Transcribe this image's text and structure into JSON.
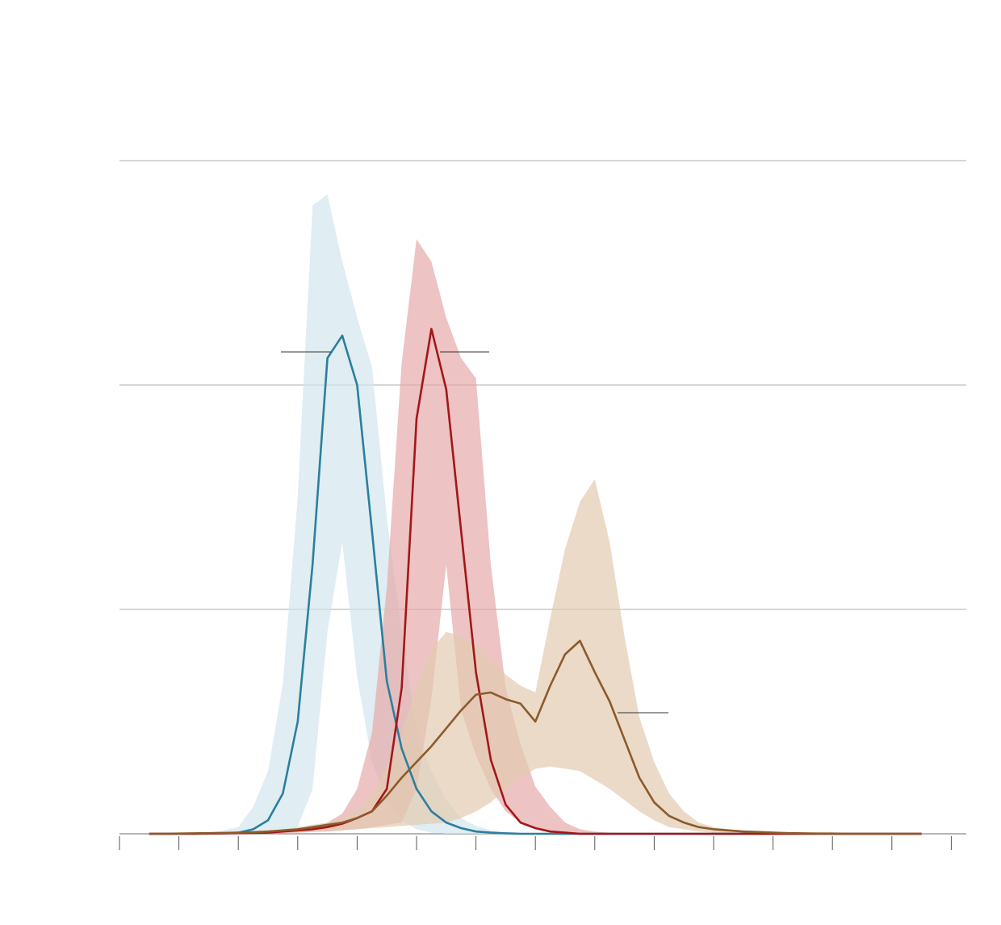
{
  "chart_data": {
    "type": "band-line",
    "x": [
      0.5,
      0.75,
      1,
      1.25,
      1.5,
      1.75,
      2,
      2.25,
      2.5,
      2.75,
      3,
      3.25,
      3.5,
      3.75,
      4,
      4.25,
      4.5,
      4.75,
      5,
      5.25,
      5.5,
      5.75,
      6,
      6.25,
      6.5,
      6.75,
      7,
      7.25,
      7.5,
      7.75,
      8,
      8.25,
      8.5,
      8.75,
      9,
      9.25,
      9.5,
      9.75,
      10,
      10.25,
      10.5,
      10.75,
      11,
      11.25,
      11.5,
      11.75,
      12,
      12.25,
      12.5,
      12.75,
      13,
      13.25,
      13.5
    ],
    "xlim": [
      0,
      14
    ],
    "xticks": [
      0,
      1,
      2,
      3,
      4,
      5,
      6,
      7,
      8,
      9,
      10,
      11,
      12,
      13,
      14
    ],
    "ylim": [
      0,
      3
    ],
    "yticks": [
      0,
      1,
      2,
      3
    ],
    "grid": true,
    "series": [
      {
        "color": "#2b7f9e",
        "band_color": "#d3e5ec",
        "values": [
          0,
          0,
          0,
          0,
          0.001,
          0.002,
          0.005,
          0.02,
          0.06,
          0.18,
          0.5,
          1.2,
          2.12,
          2.22,
          2.0,
          1.35,
          0.68,
          0.38,
          0.2,
          0.1,
          0.05,
          0.025,
          0.01,
          0.005,
          0.002,
          0,
          0,
          0,
          0,
          0,
          0,
          0,
          0,
          0,
          0,
          0,
          0,
          0,
          0,
          0,
          0,
          0,
          0,
          0,
          0,
          0,
          0,
          0,
          0,
          0,
          0,
          0,
          0
        ],
        "upper": [
          0,
          0,
          0,
          0.001,
          0.005,
          0.015,
          0.03,
          0.12,
          0.28,
          0.67,
          1.5,
          2.8,
          2.85,
          2.55,
          2.3,
          2.08,
          1.41,
          0.9,
          0.46,
          0.28,
          0.15,
          0.07,
          0.035,
          0.015,
          0.005,
          0,
          0,
          0,
          0,
          0,
          0,
          0,
          0,
          0,
          0,
          0,
          0,
          0,
          0,
          0,
          0,
          0,
          0,
          0,
          0,
          0,
          0,
          0,
          0,
          0,
          0,
          0,
          0
        ],
        "lower": [
          0,
          0,
          0,
          0,
          0,
          0,
          0,
          0.005,
          0.01,
          0.015,
          0.03,
          0.2,
          0.9,
          1.3,
          0.7,
          0.32,
          0.15,
          0.06,
          0.02,
          0.005,
          0,
          0,
          0,
          0,
          0,
          0,
          0,
          0,
          0,
          0,
          0,
          0,
          0,
          0,
          0,
          0,
          0,
          0,
          0,
          0,
          0,
          0,
          0,
          0,
          0,
          0,
          0,
          0,
          0,
          0,
          0,
          0,
          0
        ]
      },
      {
        "color": "#a3161a",
        "band_color": "#e6a9aa",
        "values": [
          0,
          0,
          0,
          0,
          0.001,
          0.002,
          0.003,
          0.004,
          0.005,
          0.01,
          0.015,
          0.02,
          0.03,
          0.045,
          0.07,
          0.1,
          0.2,
          0.65,
          1.85,
          2.25,
          1.98,
          1.35,
          0.72,
          0.33,
          0.13,
          0.05,
          0.025,
          0.01,
          0.005,
          0,
          0,
          0,
          0,
          0,
          0,
          0,
          0,
          0,
          0,
          0,
          0,
          0,
          0,
          0,
          0,
          0,
          0,
          0,
          0,
          0,
          0,
          0,
          0
        ],
        "upper": [
          0,
          0,
          0,
          0.001,
          0.002,
          0.004,
          0.006,
          0.008,
          0.01,
          0.015,
          0.02,
          0.03,
          0.05,
          0.09,
          0.2,
          0.45,
          1.1,
          2.1,
          2.65,
          2.55,
          2.3,
          2.12,
          2.03,
          1.2,
          0.65,
          0.4,
          0.21,
          0.12,
          0.05,
          0.02,
          0.01,
          0.005,
          0,
          0,
          0,
          0,
          0,
          0,
          0,
          0,
          0,
          0,
          0,
          0,
          0,
          0,
          0,
          0,
          0,
          0,
          0,
          0,
          0
        ],
        "lower": [
          0,
          0,
          0,
          0,
          0,
          0,
          0,
          0,
          0,
          0.002,
          0.005,
          0.008,
          0.01,
          0.015,
          0.02,
          0.03,
          0.04,
          0.05,
          0.2,
          0.6,
          1.2,
          0.55,
          0.35,
          0.2,
          0.1,
          0.05,
          0.02,
          0.01,
          0.005,
          0,
          0,
          0,
          0,
          0,
          0,
          0,
          0,
          0,
          0,
          0,
          0,
          0,
          0,
          0,
          0,
          0,
          0,
          0,
          0,
          0,
          0,
          0,
          0
        ]
      },
      {
        "color": "#8c5a2a",
        "band_color": "#e2cbb0",
        "values": [
          0,
          0,
          0.001,
          0.002,
          0.003,
          0.004,
          0.005,
          0.007,
          0.01,
          0.015,
          0.02,
          0.03,
          0.04,
          0.05,
          0.07,
          0.1,
          0.17,
          0.25,
          0.32,
          0.39,
          0.47,
          0.55,
          0.62,
          0.63,
          0.6,
          0.58,
          0.5,
          0.66,
          0.8,
          0.86,
          0.72,
          0.59,
          0.42,
          0.25,
          0.14,
          0.08,
          0.05,
          0.03,
          0.02,
          0.015,
          0.01,
          0.008,
          0.005,
          0.003,
          0.002,
          0.001,
          0.001,
          0,
          0,
          0,
          0,
          0,
          0
        ],
        "upper": [
          0,
          0,
          0.002,
          0.003,
          0.005,
          0.006,
          0.008,
          0.01,
          0.015,
          0.02,
          0.03,
          0.04,
          0.05,
          0.07,
          0.1,
          0.17,
          0.3,
          0.45,
          0.66,
          0.82,
          0.9,
          0.88,
          0.84,
          0.78,
          0.71,
          0.66,
          0.63,
          0.96,
          1.27,
          1.48,
          1.58,
          1.3,
          0.88,
          0.52,
          0.32,
          0.18,
          0.1,
          0.05,
          0.03,
          0.02,
          0.015,
          0.01,
          0.008,
          0.005,
          0.004,
          0.003,
          0.002,
          0,
          0,
          0,
          0,
          0,
          0
        ],
        "lower": [
          0,
          0,
          0,
          0,
          0.001,
          0.001,
          0.002,
          0.003,
          0.004,
          0.005,
          0.007,
          0.01,
          0.012,
          0.015,
          0.02,
          0.025,
          0.03,
          0.035,
          0.04,
          0.045,
          0.05,
          0.07,
          0.1,
          0.14,
          0.2,
          0.25,
          0.29,
          0.3,
          0.29,
          0.28,
          0.24,
          0.2,
          0.15,
          0.1,
          0.06,
          0.03,
          0.02,
          0.01,
          0.005,
          0.003,
          0.002,
          0.001,
          0.001,
          0,
          0,
          0,
          0,
          0,
          0,
          0,
          0,
          0,
          0
        ]
      }
    ]
  }
}
